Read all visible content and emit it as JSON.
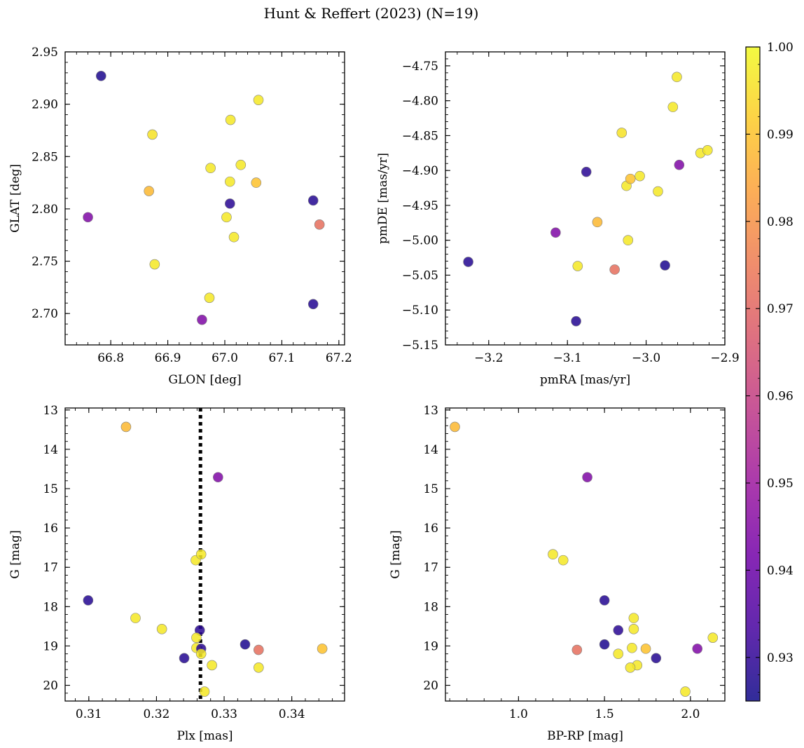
{
  "title": "Hunt & Reffert (2023) (N=19)",
  "colorbar": {
    "range": [
      0.925,
      1.0
    ],
    "ticks": [
      0.93,
      0.94,
      0.95,
      0.96,
      0.97,
      0.98,
      0.99,
      1.0
    ],
    "tick_labels": [
      "0.93",
      "0.94",
      "0.95",
      "0.96",
      "0.97",
      "0.98",
      "0.99",
      "1.00"
    ],
    "colormap": "plasma",
    "stops": [
      "#0d0887",
      "#46039f",
      "#7201a8",
      "#9c179e",
      "#bd3786",
      "#d8576b",
      "#ed7953",
      "#fb9f3a",
      "#fdca26",
      "#f0f921"
    ]
  },
  "chart_data": [
    {
      "type": "scatter",
      "xlabel": "GLON [deg]",
      "ylabel": "GLAT [deg]",
      "xlim": [
        66.72,
        67.21
      ],
      "ylim": [
        2.67,
        2.95
      ],
      "xticks": [
        66.8,
        66.9,
        67.0,
        67.1,
        67.2
      ],
      "xtick_labels": [
        "66.8",
        "66.9",
        "67.0",
        "67.1",
        "67.2"
      ],
      "yticks": [
        2.7,
        2.75,
        2.8,
        2.85,
        2.9,
        2.95
      ],
      "ytick_labels": [
        "2.70",
        "2.75",
        "2.80",
        "2.85",
        "2.90",
        "2.95"
      ],
      "points": [
        {
          "x": 66.783,
          "y": 2.927,
          "p": 0.927
        },
        {
          "x": 66.76,
          "y": 2.792,
          "p": 0.944
        },
        {
          "x": 66.873,
          "y": 2.871,
          "p": 0.996
        },
        {
          "x": 66.867,
          "y": 2.817,
          "p": 0.988
        },
        {
          "x": 66.877,
          "y": 2.747,
          "p": 0.997
        },
        {
          "x": 66.96,
          "y": 2.694,
          "p": 0.944
        },
        {
          "x": 66.973,
          "y": 2.715,
          "p": 0.997
        },
        {
          "x": 66.975,
          "y": 2.839,
          "p": 0.997
        },
        {
          "x": 67.003,
          "y": 2.792,
          "p": 0.997
        },
        {
          "x": 67.009,
          "y": 2.826,
          "p": 0.997
        },
        {
          "x": 67.009,
          "y": 2.805,
          "p": 0.929
        },
        {
          "x": 67.01,
          "y": 2.885,
          "p": 0.997
        },
        {
          "x": 67.016,
          "y": 2.773,
          "p": 0.997
        },
        {
          "x": 67.028,
          "y": 2.842,
          "p": 0.997
        },
        {
          "x": 67.055,
          "y": 2.825,
          "p": 0.99
        },
        {
          "x": 67.059,
          "y": 2.904,
          "p": 0.997
        },
        {
          "x": 67.155,
          "y": 2.808,
          "p": 0.928
        },
        {
          "x": 67.155,
          "y": 2.709,
          "p": 0.928
        },
        {
          "x": 67.166,
          "y": 2.785,
          "p": 0.972
        }
      ]
    },
    {
      "type": "scatter",
      "xlabel": "pmRA [mas/yr]",
      "ylabel": "pmDE [mas/yr]",
      "xlim": [
        -3.255,
        -2.9
      ],
      "ylim": [
        -5.15,
        -4.73
      ],
      "xticks": [
        -3.2,
        -3.1,
        -3.0,
        -2.9
      ],
      "xtick_labels": [
        "−3.2",
        "−3.1",
        "−3.0",
        "−2.9"
      ],
      "yticks": [
        -5.15,
        -5.1,
        -5.05,
        -5.0,
        -4.95,
        -4.9,
        -4.85,
        -4.8,
        -4.75
      ],
      "ytick_labels": [
        "−5.15",
        "−5.10",
        "−5.05",
        "−5.00",
        "−4.95",
        "−4.90",
        "−4.85",
        "−4.80",
        "−4.75"
      ],
      "points": [
        {
          "x": -3.226,
          "y": -5.031,
          "p": 0.928
        },
        {
          "x": -3.115,
          "y": -4.989,
          "p": 0.944
        },
        {
          "x": -3.089,
          "y": -5.116,
          "p": 0.928
        },
        {
          "x": -3.087,
          "y": -5.037,
          "p": 0.997
        },
        {
          "x": -3.076,
          "y": -4.902,
          "p": 0.929
        },
        {
          "x": -3.062,
          "y": -4.974,
          "p": 0.988
        },
        {
          "x": -3.04,
          "y": -5.042,
          "p": 0.972
        },
        {
          "x": -3.031,
          "y": -4.846,
          "p": 0.996
        },
        {
          "x": -3.025,
          "y": -4.922,
          "p": 0.997
        },
        {
          "x": -3.023,
          "y": -5.0,
          "p": 0.997
        },
        {
          "x": -3.02,
          "y": -4.912,
          "p": 0.99
        },
        {
          "x": -3.008,
          "y": -4.908,
          "p": 0.997
        },
        {
          "x": -2.985,
          "y": -4.93,
          "p": 0.997
        },
        {
          "x": -2.976,
          "y": -5.036,
          "p": 0.927
        },
        {
          "x": -2.966,
          "y": -4.809,
          "p": 0.997
        },
        {
          "x": -2.961,
          "y": -4.766,
          "p": 0.997
        },
        {
          "x": -2.958,
          "y": -4.892,
          "p": 0.944
        },
        {
          "x": -2.931,
          "y": -4.875,
          "p": 0.997
        },
        {
          "x": -2.922,
          "y": -4.871,
          "p": 0.997
        }
      ]
    },
    {
      "type": "scatter",
      "xlabel": "Plx [mas]",
      "ylabel": "G [mag]",
      "xlim": [
        0.3065,
        0.3478
      ],
      "ylim": [
        20.4,
        12.95
      ],
      "invert_y": true,
      "xticks": [
        0.31,
        0.32,
        0.33,
        0.34
      ],
      "xtick_labels": [
        "0.31",
        "0.32",
        "0.33",
        "0.34"
      ],
      "yticks": [
        13,
        14,
        15,
        16,
        17,
        18,
        19,
        20
      ],
      "ytick_labels": [
        "13",
        "14",
        "15",
        "16",
        "17",
        "18",
        "19",
        "20"
      ],
      "vline": {
        "x": 0.3265,
        "style": "dotted"
      },
      "points": [
        {
          "x": 0.3155,
          "y": 13.43,
          "p": 0.988
        },
        {
          "x": 0.3291,
          "y": 14.71,
          "p": 0.944
        },
        {
          "x": 0.3258,
          "y": 16.82,
          "p": 0.997
        },
        {
          "x": 0.3266,
          "y": 16.67,
          "p": 0.997
        },
        {
          "x": 0.3099,
          "y": 17.84,
          "p": 0.928
        },
        {
          "x": 0.3169,
          "y": 18.29,
          "p": 0.997
        },
        {
          "x": 0.3208,
          "y": 18.57,
          "p": 0.997
        },
        {
          "x": 0.3264,
          "y": 18.6,
          "p": 0.929
        },
        {
          "x": 0.3259,
          "y": 18.79,
          "p": 0.997
        },
        {
          "x": 0.3331,
          "y": 18.96,
          "p": 0.927
        },
        {
          "x": 0.3259,
          "y": 19.05,
          "p": 0.997
        },
        {
          "x": 0.3266,
          "y": 19.07,
          "p": 0.929
        },
        {
          "x": 0.3351,
          "y": 19.1,
          "p": 0.972
        },
        {
          "x": 0.3445,
          "y": 19.07,
          "p": 0.99
        },
        {
          "x": 0.3266,
          "y": 19.2,
          "p": 0.997
        },
        {
          "x": 0.3241,
          "y": 19.31,
          "p": 0.928
        },
        {
          "x": 0.3282,
          "y": 19.49,
          "p": 0.997
        },
        {
          "x": 0.3351,
          "y": 19.55,
          "p": 0.997
        },
        {
          "x": 0.3271,
          "y": 20.16,
          "p": 0.997
        }
      ]
    },
    {
      "type": "scatter",
      "xlabel": "BP-RP [mag]",
      "ylabel": "G [mag]",
      "xlim": [
        0.575,
        2.2
      ],
      "ylim": [
        20.4,
        12.95
      ],
      "invert_y": true,
      "xticks": [
        1.0,
        1.5,
        2.0
      ],
      "xtick_labels": [
        "1.0",
        "1.5",
        "2.0"
      ],
      "yticks": [
        13,
        14,
        15,
        16,
        17,
        18,
        19,
        20
      ],
      "ytick_labels": [
        "13",
        "14",
        "15",
        "16",
        "17",
        "18",
        "19",
        "20"
      ],
      "points": [
        {
          "x": 0.63,
          "y": 13.43,
          "p": 0.988
        },
        {
          "x": 1.4,
          "y": 14.71,
          "p": 0.944
        },
        {
          "x": 1.2,
          "y": 16.67,
          "p": 0.997
        },
        {
          "x": 1.26,
          "y": 16.82,
          "p": 0.997
        },
        {
          "x": 1.5,
          "y": 17.84,
          "p": 0.928
        },
        {
          "x": 1.67,
          "y": 18.29,
          "p": 0.997
        },
        {
          "x": 1.67,
          "y": 18.57,
          "p": 0.997
        },
        {
          "x": 1.58,
          "y": 18.6,
          "p": 0.929
        },
        {
          "x": 2.13,
          "y": 18.79,
          "p": 0.997
        },
        {
          "x": 1.5,
          "y": 18.96,
          "p": 0.927
        },
        {
          "x": 1.66,
          "y": 19.05,
          "p": 0.997
        },
        {
          "x": 2.04,
          "y": 19.07,
          "p": 0.944
        },
        {
          "x": 1.34,
          "y": 19.1,
          "p": 0.972
        },
        {
          "x": 1.74,
          "y": 19.07,
          "p": 0.99
        },
        {
          "x": 1.58,
          "y": 19.2,
          "p": 0.997
        },
        {
          "x": 1.8,
          "y": 19.31,
          "p": 0.928
        },
        {
          "x": 1.69,
          "y": 19.49,
          "p": 0.997
        },
        {
          "x": 1.65,
          "y": 19.55,
          "p": 0.997
        },
        {
          "x": 1.97,
          "y": 20.16,
          "p": 0.997
        }
      ]
    }
  ]
}
